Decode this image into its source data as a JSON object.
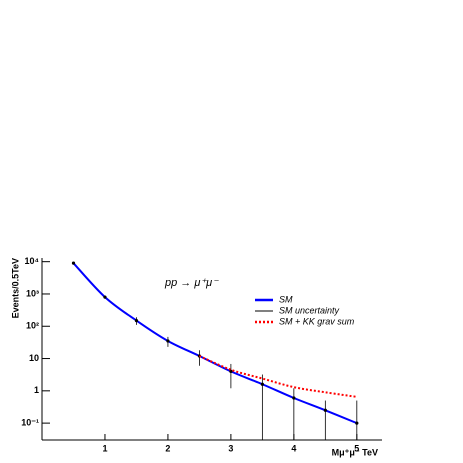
{
  "chart_data": {
    "type": "line",
    "annotation": "pp → μ⁺μ⁻",
    "x_label": "Mμ⁺μ⁻ TeV",
    "y_label": "Events/0.5TeV",
    "x": [
      0.5,
      1,
      1.5,
      2,
      2.5,
      3,
      3.5,
      4,
      4.5,
      5
    ],
    "series": [
      {
        "name": "SM",
        "color": "#0000ff",
        "style": "line",
        "values": [
          9000,
          800,
          150,
          35,
          12,
          4,
          1.6,
          0.6,
          0.25,
          0.1
        ]
      },
      {
        "name": "SM uncertainty",
        "color": "#000000",
        "style": "errorbar",
        "values": [
          9000,
          800,
          150,
          35,
          12,
          4,
          1.6,
          0.6,
          0.25,
          0.1
        ],
        "errors": [
          0,
          0,
          40,
          12,
          6,
          2.8,
          1.6,
          0.6,
          0.25,
          0.4
        ]
      },
      {
        "name": "SM + KK grav sum",
        "color": "#ff0000",
        "style": "dashed",
        "values": [
          null,
          null,
          null,
          null,
          12,
          4.5,
          2.4,
          1.3,
          0.9,
          0.65
        ]
      }
    ],
    "xlim": [
      0,
      5.4
    ],
    "xticks": [
      1,
      2,
      3,
      4,
      5
    ],
    "ylim": [
      0.03,
      13000
    ],
    "yticks": [
      {
        "value": 10000,
        "label": "10⁴"
      },
      {
        "value": 1000,
        "label": "10³"
      },
      {
        "value": 100,
        "label": "10²"
      },
      10,
      1,
      {
        "value": 0.1,
        "label": "10⁻¹"
      }
    ],
    "ylog": true,
    "legend": "upper right"
  }
}
